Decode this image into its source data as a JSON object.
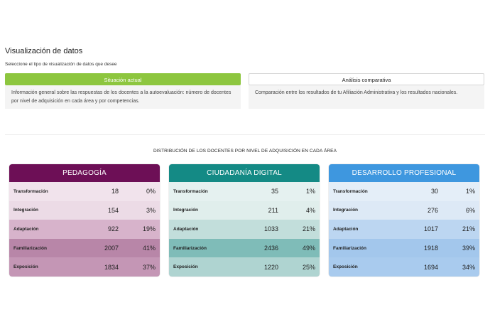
{
  "header": {
    "title": "Visualización de datos",
    "subtitle": "Seleccione el tipo de visualización de datos que desee"
  },
  "options": [
    {
      "label": "Situación actual",
      "description": "Información general sobre las respuestas de los docentes a la autoevaluación: número de docentes por nivel de adquisición en cada área y por competencias.",
      "selected": true
    },
    {
      "label": "Análisis comparativa",
      "description": "Comparación entre los resultados de tu Afiliación Administrativa y los resultados nacionales.",
      "selected": false
    }
  ],
  "distribution": {
    "title": "DISTRIBUCIÓN DE LOS DOCENTES POR NIVEL DE ADQUISICIÓN EN CADA ÁREA",
    "cards": [
      {
        "title": "PEDAGOGÍA",
        "color": "#6d0f56",
        "rows": [
          {
            "level": "Transformación",
            "count": "18",
            "pct": "0%"
          },
          {
            "level": "Integración",
            "count": "154",
            "pct": "3%"
          },
          {
            "level": "Adaptación",
            "count": "922",
            "pct": "19%"
          },
          {
            "level": "Familiarización",
            "count": "2007",
            "pct": "41%"
          },
          {
            "level": "Exposición",
            "count": "1834",
            "pct": "37%"
          }
        ]
      },
      {
        "title": "CIUDADANÍA DIGITAL",
        "color": "#148a85",
        "rows": [
          {
            "level": "Transformación",
            "count": "35",
            "pct": "1%"
          },
          {
            "level": "Integración",
            "count": "211",
            "pct": "4%"
          },
          {
            "level": "Adaptación",
            "count": "1033",
            "pct": "21%"
          },
          {
            "level": "Familiarización",
            "count": "2436",
            "pct": "49%"
          },
          {
            "level": "Exposición",
            "count": "1220",
            "pct": "25%"
          }
        ]
      },
      {
        "title": "DESARROLLO PROFESIONAL",
        "color": "#3e97df",
        "rows": [
          {
            "level": "Transformación",
            "count": "30",
            "pct": "1%"
          },
          {
            "level": "Integración",
            "count": "276",
            "pct": "6%"
          },
          {
            "level": "Adaptación",
            "count": "1017",
            "pct": "21%"
          },
          {
            "level": "Familiarización",
            "count": "1918",
            "pct": "39%"
          },
          {
            "level": "Exposición",
            "count": "1694",
            "pct": "34%"
          }
        ]
      }
    ]
  }
}
